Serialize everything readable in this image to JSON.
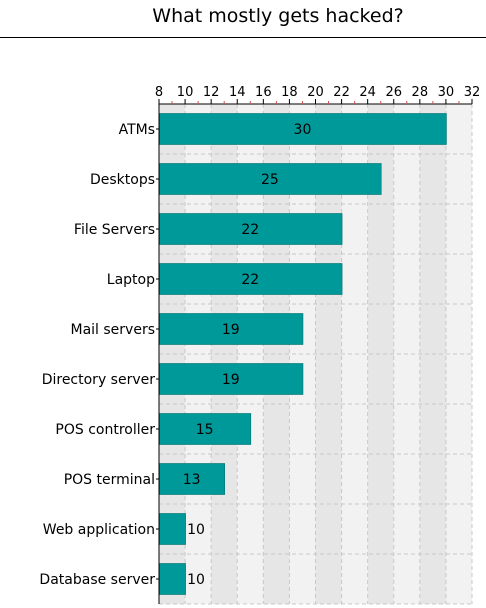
{
  "chart_data": {
    "type": "bar",
    "orientation": "horizontal",
    "title": "What mostly gets hacked?",
    "categories": [
      "ATMs",
      "Desktops",
      "File Servers",
      "Laptop",
      "Mail servers",
      "Directory server",
      "POS controller",
      "POS terminal",
      "Web application",
      "Database server"
    ],
    "values": [
      30,
      25,
      22,
      22,
      19,
      19,
      15,
      13,
      10,
      10
    ],
    "xlim": [
      8,
      32
    ],
    "xticks": [
      8,
      10,
      12,
      14,
      16,
      18,
      20,
      22,
      24,
      26,
      28,
      30,
      32
    ],
    "axis_position": "top",
    "grid": true,
    "bar_color": "#009999",
    "stripe_colors": [
      "#e6e6e6",
      "#f2f2f2"
    ]
  }
}
